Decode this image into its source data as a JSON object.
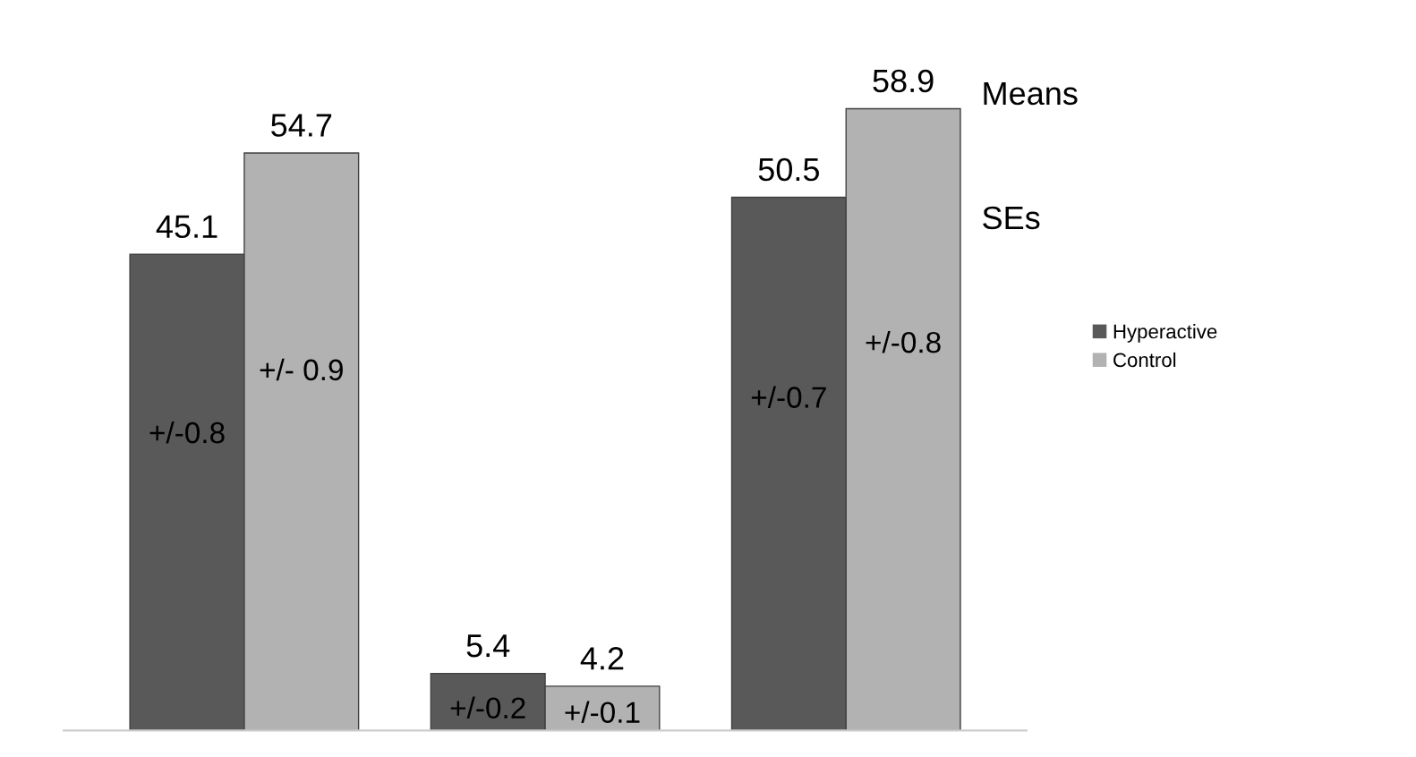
{
  "chart_data": {
    "type": "bar",
    "categories": [
      null,
      null,
      null
    ],
    "series": [
      {
        "name": "Hyperactive",
        "color": "#595959",
        "values": [
          45.1,
          5.4,
          50.5
        ]
      },
      {
        "name": "Control",
        "color": "#b2b2b2",
        "values": [
          54.7,
          4.2,
          58.9
        ]
      }
    ],
    "data_labels": true,
    "legend": "right",
    "annotations": [
      "Means",
      "SEs",
      "+/-0.8",
      "+/- 0.9",
      "+/-0.2",
      "+/-0.1",
      "+/-0.7",
      "+/-0.8"
    ]
  }
}
